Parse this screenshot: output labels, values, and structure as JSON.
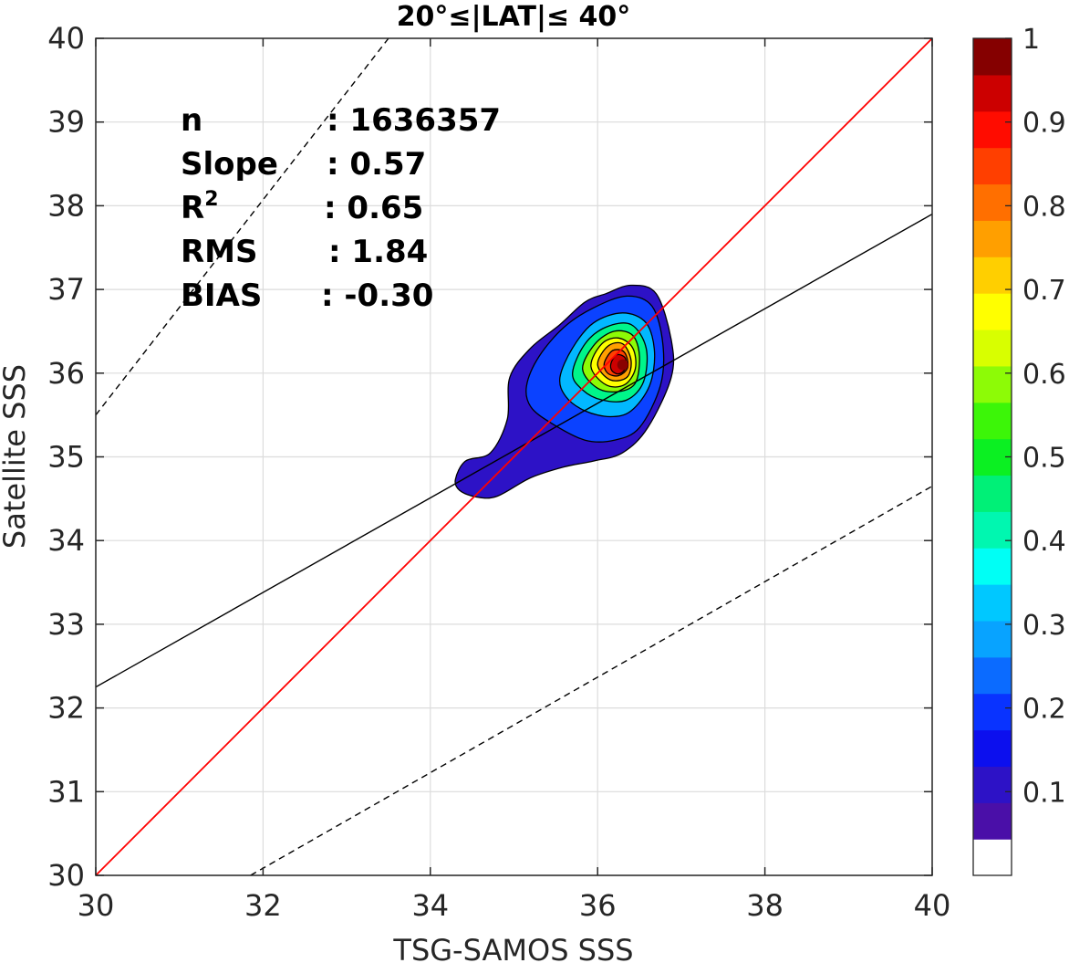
{
  "chart_data": {
    "type": "contour",
    "title": "20°≤|LAT|≤ 40°",
    "xlabel": "TSG-SAMOS SSS",
    "ylabel": "Satellite SSS",
    "xlim": [
      30,
      40
    ],
    "ylim": [
      30,
      40
    ],
    "xticks": [
      "30",
      "32",
      "34",
      "36",
      "38",
      "40"
    ],
    "yticks": [
      "30",
      "31",
      "32",
      "33",
      "34",
      "35",
      "36",
      "37",
      "38",
      "39",
      "40"
    ],
    "grid": true,
    "density_peak": {
      "x": 36.3,
      "y": 36.1
    },
    "lines": {
      "one_to_one": {
        "color": "#ff0000",
        "style": "solid",
        "points": [
          [
            30,
            30
          ],
          [
            40,
            40
          ]
        ]
      },
      "regression": {
        "color": "#000000",
        "style": "solid",
        "slope": 0.57,
        "points": [
          [
            30,
            32.25
          ],
          [
            40,
            37.9
          ]
        ]
      },
      "upper_bound": {
        "color": "#000000",
        "style": "dashed",
        "points": [
          [
            30,
            35.5
          ],
          [
            33.5,
            40
          ]
        ]
      },
      "lower_bound": {
        "color": "#000000",
        "style": "dashed",
        "points": [
          [
            31.85,
            30
          ],
          [
            40,
            34.65
          ]
        ]
      }
    },
    "stats": [
      {
        "key": "n",
        "sup": "",
        "value": ": 1636357"
      },
      {
        "key": "Slope",
        "sup": "",
        "value": ": 0.57"
      },
      {
        "key": "R",
        "sup": "2",
        "value": ": 0.65"
      },
      {
        "key": "RMS",
        "sup": "",
        "value": ": 1.84"
      },
      {
        "key": "BIAS",
        "sup": "",
        "value": ": -0.30"
      }
    ],
    "colorbar": {
      "range": [
        0,
        1
      ],
      "levels": 22,
      "ticks": [
        "0.1",
        "0.2",
        "0.3",
        "0.4",
        "0.5",
        "0.6",
        "0.7",
        "0.8",
        "0.9",
        "1"
      ],
      "colors": [
        "#ffffff",
        "#4a0fa8",
        "#2d12c6",
        "#0c0fee",
        "#0933ff",
        "#0b6bff",
        "#08a3ff",
        "#00c8ff",
        "#00fff5",
        "#00f7b0",
        "#00f077",
        "#0bf022",
        "#3cf608",
        "#8dfb06",
        "#d8ff00",
        "#ffff00",
        "#ffcf00",
        "#ff9f00",
        "#ff6f00",
        "#ff3f00",
        "#ff0c00",
        "#cc0000",
        "#850000"
      ]
    },
    "contour_levels": [
      {
        "level": 0.05,
        "color": "#2d12c6",
        "points": [
          [
            34.3,
            34.73
          ],
          [
            34.42,
            34.95
          ],
          [
            34.72,
            35.05
          ],
          [
            34.92,
            35.45
          ],
          [
            34.95,
            35.95
          ],
          [
            35.2,
            36.3
          ],
          [
            35.55,
            36.58
          ],
          [
            35.85,
            36.85
          ],
          [
            36.1,
            36.95
          ],
          [
            36.4,
            37.05
          ],
          [
            36.7,
            36.95
          ],
          [
            36.88,
            36.4
          ],
          [
            36.88,
            35.95
          ],
          [
            36.6,
            35.35
          ],
          [
            36.3,
            35.05
          ],
          [
            35.95,
            34.95
          ],
          [
            35.6,
            34.88
          ],
          [
            35.2,
            34.75
          ],
          [
            34.8,
            34.53
          ],
          [
            34.55,
            34.52
          ],
          [
            34.35,
            34.6
          ]
        ]
      },
      {
        "level": 0.15,
        "color": "#0b42ff",
        "points": [
          [
            35.15,
            35.85
          ],
          [
            35.3,
            36.2
          ],
          [
            35.6,
            36.55
          ],
          [
            35.95,
            36.78
          ],
          [
            36.35,
            36.92
          ],
          [
            36.65,
            36.8
          ],
          [
            36.78,
            36.35
          ],
          [
            36.75,
            35.85
          ],
          [
            36.5,
            35.35
          ],
          [
            36.2,
            35.2
          ],
          [
            35.85,
            35.2
          ],
          [
            35.45,
            35.4
          ],
          [
            35.2,
            35.6
          ]
        ]
      },
      {
        "level": 0.3,
        "color": "#02b8ff",
        "points": [
          [
            35.55,
            35.95
          ],
          [
            35.7,
            36.3
          ],
          [
            35.95,
            36.6
          ],
          [
            36.3,
            36.72
          ],
          [
            36.58,
            36.6
          ],
          [
            36.68,
            36.25
          ],
          [
            36.62,
            35.85
          ],
          [
            36.4,
            35.55
          ],
          [
            36.15,
            35.48
          ],
          [
            35.85,
            35.55
          ],
          [
            35.62,
            35.72
          ]
        ]
      },
      {
        "level": 0.45,
        "color": "#00f58a",
        "points": [
          [
            35.7,
            36.0
          ],
          [
            35.85,
            36.35
          ],
          [
            36.1,
            36.55
          ],
          [
            36.4,
            36.58
          ],
          [
            36.58,
            36.3
          ],
          [
            36.55,
            35.9
          ],
          [
            36.35,
            35.68
          ],
          [
            36.05,
            35.68
          ],
          [
            35.82,
            35.8
          ]
        ]
      },
      {
        "level": 0.55,
        "color": "#8dfb06",
        "points": [
          [
            35.82,
            36.05
          ],
          [
            35.97,
            36.35
          ],
          [
            36.2,
            36.5
          ],
          [
            36.42,
            36.45
          ],
          [
            36.5,
            36.2
          ],
          [
            36.45,
            35.88
          ],
          [
            36.25,
            35.78
          ],
          [
            36.0,
            35.82
          ]
        ]
      },
      {
        "level": 0.65,
        "color": "#ffff00",
        "points": [
          [
            35.92,
            36.08
          ],
          [
            36.05,
            36.35
          ],
          [
            36.25,
            36.42
          ],
          [
            36.42,
            36.3
          ],
          [
            36.45,
            36.05
          ],
          [
            36.32,
            35.86
          ],
          [
            36.1,
            35.86
          ]
        ]
      },
      {
        "level": 0.75,
        "color": "#ff9f00",
        "points": [
          [
            36.0,
            36.1
          ],
          [
            36.12,
            36.32
          ],
          [
            36.3,
            36.35
          ],
          [
            36.4,
            36.15
          ],
          [
            36.35,
            35.95
          ],
          [
            36.15,
            35.92
          ]
        ]
      },
      {
        "level": 0.85,
        "color": "#ff3f00",
        "points": [
          [
            36.08,
            36.12
          ],
          [
            36.18,
            36.27
          ],
          [
            36.32,
            36.25
          ],
          [
            36.36,
            36.07
          ],
          [
            36.25,
            35.97
          ],
          [
            36.12,
            36.0
          ]
        ]
      },
      {
        "level": 0.95,
        "color": "#cc0000",
        "points": [
          [
            36.16,
            36.12
          ],
          [
            36.23,
            36.22
          ],
          [
            36.33,
            36.18
          ],
          [
            36.33,
            36.05
          ],
          [
            36.25,
            35.99
          ],
          [
            36.17,
            36.03
          ]
        ]
      }
    ]
  }
}
